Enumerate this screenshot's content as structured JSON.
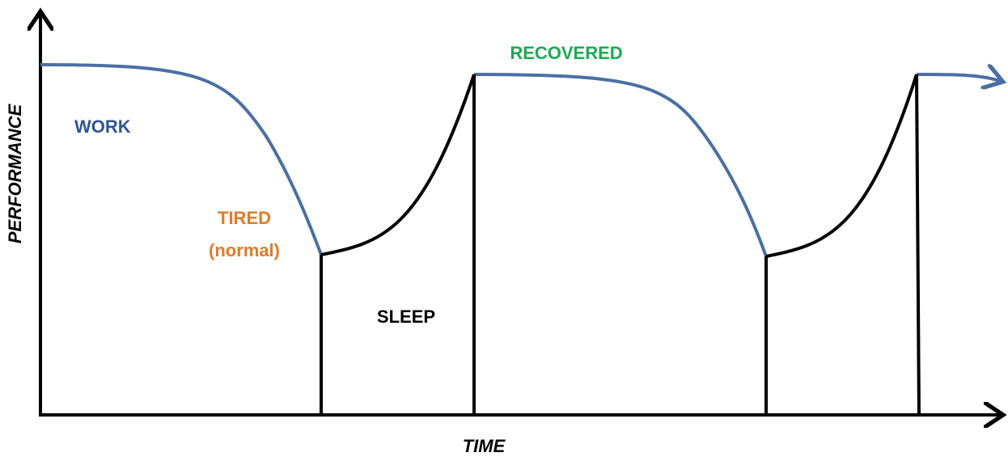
{
  "axes": {
    "y_label": "PERFORMANCE",
    "x_label": "TIME"
  },
  "labels": {
    "work": "WORK",
    "tired": "TIRED",
    "tired_note": "(normal)",
    "sleep": "SLEEP",
    "recovered": "RECOVERED"
  }
}
